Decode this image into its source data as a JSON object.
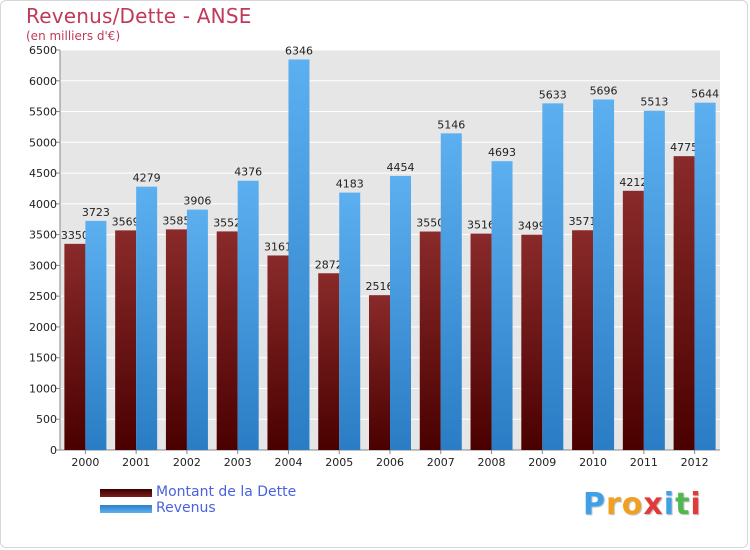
{
  "title": "Revenus/Dette - ANSE",
  "subtitle": "(en milliers d'€)",
  "chart_data": {
    "type": "bar",
    "categories": [
      "2000",
      "2001",
      "2002",
      "2003",
      "2004",
      "2005",
      "2006",
      "2007",
      "2008",
      "2009",
      "2010",
      "2011",
      "2012"
    ],
    "series": [
      {
        "name": "Montant de la Dette",
        "color": "#7a1e1e",
        "values": [
          3350,
          3569,
          3585,
          3552,
          3161,
          2872,
          2516,
          3550,
          3516,
          3499,
          3571,
          4212,
          4775
        ],
        "labels": [
          "3350",
          "3569",
          "3585",
          "3552",
          "3161",
          "2872",
          "2516",
          "3550",
          "3516",
          "3499",
          "3571",
          "4212",
          "4775"
        ]
      },
      {
        "name": "Revenus",
        "color": "#4a9be0",
        "values": [
          3723,
          4279,
          3906,
          4376,
          6346,
          4183,
          4454,
          5146,
          4693,
          5633,
          5696,
          5513,
          5644
        ],
        "labels": [
          "3723",
          "4279",
          "3906",
          "4376",
          "6346",
          "4183",
          "4454",
          "5146",
          "4693",
          "5633",
          "5696",
          "5513",
          "5644"
        ]
      }
    ],
    "ylim": [
      0,
      6500
    ],
    "yticks": [
      "0",
      "500",
      "1000",
      "1500",
      "2000",
      "2500",
      "3000",
      "3500",
      "4000",
      "4500",
      "5000",
      "5500",
      "6000",
      "6500"
    ],
    "grid": true,
    "legend": "bottom-left"
  },
  "legend": {
    "debt_label": "Montant de la Dette",
    "revenue_label": "Revenus"
  },
  "logo": {
    "letters": [
      "P",
      "r",
      "o",
      "x",
      "i",
      "t",
      "i"
    ],
    "colors": [
      "#3fa0e8",
      "#f0a020",
      "#f0a020",
      "#e03a3a",
      "#3fa0e8",
      "#50b850",
      "#e03a3a"
    ]
  }
}
